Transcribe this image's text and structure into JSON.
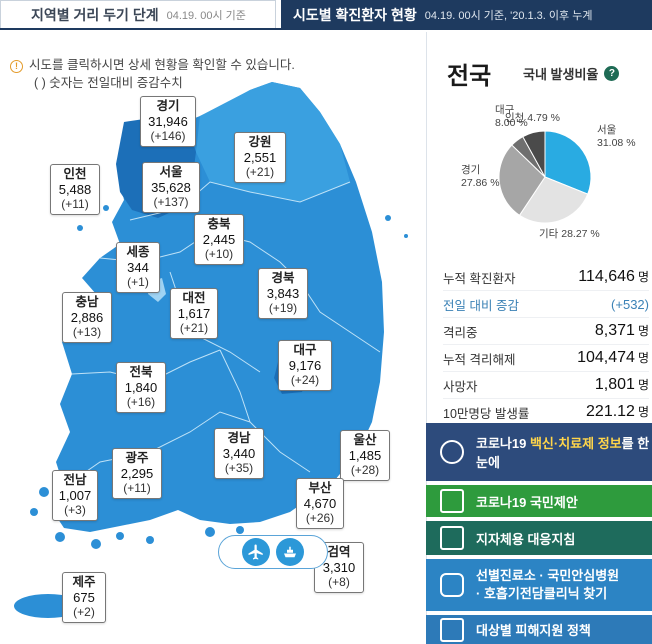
{
  "tabs": {
    "distancing_label": "지역별 거리 두기 단계",
    "distancing_date": "04.19. 00시 기준",
    "status_label": "시도별 확진환자 현황",
    "status_date": "04.19. 00시 기준, '20.1.3. 이후 누계"
  },
  "notice": {
    "line1": "시도를 클릭하시면 상세 현황을 확인할 수 있습니다.",
    "line2": "( ) 숫자는 전일대비 증감수치"
  },
  "regions": [
    {
      "name": "경기",
      "count": "31,946",
      "delta": "(+146)"
    },
    {
      "name": "강원",
      "count": "2,551",
      "delta": "(+21)"
    },
    {
      "name": "인천",
      "count": "5,488",
      "delta": "(+11)"
    },
    {
      "name": "서울",
      "count": "35,628",
      "delta": "(+137)"
    },
    {
      "name": "충북",
      "count": "2,445",
      "delta": "(+10)"
    },
    {
      "name": "세종",
      "count": "344",
      "delta": "(+1)"
    },
    {
      "name": "경북",
      "count": "3,843",
      "delta": "(+19)"
    },
    {
      "name": "충남",
      "count": "2,886",
      "delta": "(+13)"
    },
    {
      "name": "대전",
      "count": "1,617",
      "delta": "(+21)"
    },
    {
      "name": "대구",
      "count": "9,176",
      "delta": "(+24)"
    },
    {
      "name": "전북",
      "count": "1,840",
      "delta": "(+16)"
    },
    {
      "name": "경남",
      "count": "3,440",
      "delta": "(+35)"
    },
    {
      "name": "울산",
      "count": "1,485",
      "delta": "(+28)"
    },
    {
      "name": "광주",
      "count": "2,295",
      "delta": "(+11)"
    },
    {
      "name": "전남",
      "count": "1,007",
      "delta": "(+3)"
    },
    {
      "name": "부산",
      "count": "4,670",
      "delta": "(+26)"
    },
    {
      "name": "검역",
      "count": "3,310",
      "delta": "(+8)"
    },
    {
      "name": "제주",
      "count": "675",
      "delta": "(+2)"
    }
  ],
  "icons": {
    "airplane": "airplane-icon",
    "ship": "ship-icon"
  },
  "summary": {
    "title": "전국",
    "subtitle": "국내 발생비율",
    "help_icon": "?"
  },
  "chart_data": {
    "type": "pie",
    "categories": [
      "서울",
      "기타",
      "경기",
      "인천",
      "대구"
    ],
    "values": [
      31.08,
      28.27,
      27.86,
      4.79,
      8.0
    ],
    "labels": [
      "서울\n31.08 %",
      "기타 28.27 %",
      "경기\n27.86 %",
      "인천 4.79 %",
      "대구\n8.00 %"
    ],
    "colors": [
      "#29abe2",
      "#e3e3e3",
      "#a6a6a6",
      "#6f6f6f",
      "#4a4a4a"
    ]
  },
  "stats": [
    {
      "label": "누적 확진환자",
      "value": "114,646",
      "unit": "명"
    },
    {
      "label": "전일 대비 증감",
      "value": "(+532)",
      "unit": ""
    },
    {
      "label": "격리중",
      "value": "8,371",
      "unit": "명"
    },
    {
      "label": "누적 격리해제",
      "value": "104,474",
      "unit": "명"
    },
    {
      "label": "사망자",
      "value": "1,801",
      "unit": "명"
    },
    {
      "label": "10만명당 발생률",
      "value": "221.12",
      "unit": "명"
    }
  ],
  "buttons": {
    "vaccine_pre": "코로나19 ",
    "vaccine_highlight": "백신·치료제 정보",
    "vaccine_post": "를 한눈에",
    "proposal": "코로나19 국민제안",
    "local_guide": "지자체용 대응지침",
    "hospital_line1": "선별진료소 · 국민안심병원",
    "hospital_line2": "· 호흡기전담클리닉 찾기",
    "support": "대상별 피해지원 정책"
  }
}
